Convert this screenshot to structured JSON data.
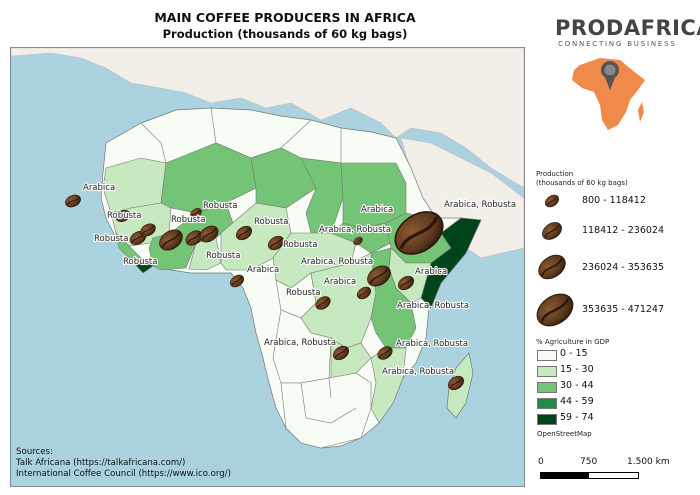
{
  "title": "MAIN COFFEE PRODUCERS IN AFRICA",
  "subtitle": "Production (thousands of 60 kg bags)",
  "brand": {
    "name": "PRODAFRICA",
    "tagline": "CONNECTING BUSINESS",
    "pin_color": "#555555",
    "africa_color": "#f08a4b"
  },
  "map_labels": [
    {
      "text": "Arabica",
      "type": "Arabica"
    },
    {
      "text": "Robusta",
      "type": "Robusta"
    },
    {
      "text": "Robusta",
      "type": "Robusta"
    },
    {
      "text": "Robusta",
      "type": "Robusta"
    },
    {
      "text": "Robusta",
      "type": "Robusta"
    },
    {
      "text": "Robusta",
      "type": "Robusta"
    },
    {
      "text": "Robusta",
      "type": "Robusta"
    },
    {
      "text": "Robusta",
      "type": "Robusta"
    },
    {
      "text": "Robusta",
      "type": "Robusta"
    },
    {
      "text": "Arabica",
      "type": "Arabica"
    },
    {
      "text": "Arabica, Robusta",
      "type": "Arabica, Robusta"
    },
    {
      "text": "Arabica, Robusta",
      "type": "Arabica, Robusta"
    },
    {
      "text": "Arabica",
      "type": "Arabica"
    },
    {
      "text": "Arabica",
      "type": "Arabica"
    },
    {
      "text": "Robusta",
      "type": "Robusta"
    },
    {
      "text": "Arabica",
      "type": "Arabica"
    },
    {
      "text": "Arabica, Robusta",
      "type": "Arabica, Robusta"
    },
    {
      "text": "Arabica, Robusta",
      "type": "Arabica, Robusta"
    },
    {
      "text": "Arabica, Robusta",
      "type": "Arabica, Robusta"
    },
    {
      "text": "Arabica, Robusta",
      "type": "Arabica, Robusta"
    }
  ],
  "legend": {
    "production_title_line1": "Production",
    "production_title_line2": "(thousands of 60 kg bags)",
    "production_classes": [
      "800 - 118412",
      "118412 - 236024",
      "236024 - 353635",
      "353635 - 471247"
    ],
    "agri_title": "% Agriculture in GDP",
    "agri_classes": [
      {
        "label": "0 - 15",
        "color": "#f7fcf5"
      },
      {
        "label": "15 - 30",
        "color": "#c7e9c0"
      },
      {
        "label": "30 - 44",
        "color": "#74c476"
      },
      {
        "label": "44 - 59",
        "color": "#238b45"
      },
      {
        "label": "59 - 74",
        "color": "#00441b"
      }
    ],
    "attribution": "OpenStreetMap"
  },
  "scale": {
    "zero": "0",
    "mid": "750",
    "end": "1.500 km"
  },
  "sources": {
    "heading": "Sources:",
    "line1": "Talk Africana (https://talkafricana.com/)",
    "line2": "International Coffee Council (https://www.ico.org/)"
  },
  "colors": {
    "sea": "#aad3df",
    "land": "#f2efe9",
    "bean": "#6b4425",
    "bean_dark": "#3e2410"
  }
}
